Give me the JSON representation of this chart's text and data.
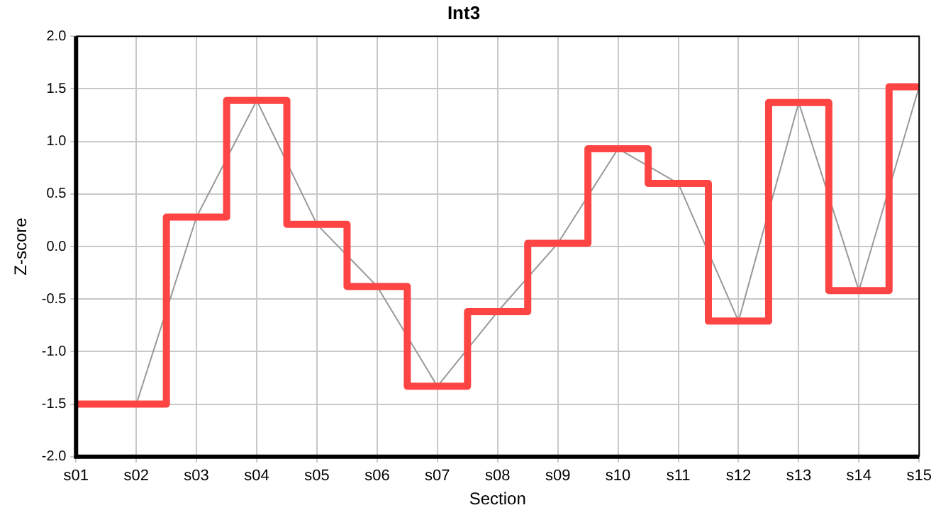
{
  "chart_data": {
    "type": "step",
    "title": "Int3",
    "xlabel": "Section",
    "ylabel": "Z-score",
    "categories": [
      "s01",
      "s02",
      "s03",
      "s04",
      "s05",
      "s06",
      "s07",
      "s08",
      "s09",
      "s10",
      "s11",
      "s12",
      "s13",
      "s14",
      "s15"
    ],
    "series": [
      {
        "type": "step",
        "color": "#ff4444",
        "values": [
          -1.5,
          -1.5,
          0.28,
          1.39,
          0.21,
          -0.38,
          -1.33,
          -0.62,
          0.03,
          0.93,
          0.6,
          -0.71,
          1.37,
          -0.42,
          1.52
        ]
      },
      {
        "type": "line",
        "color": "#999999",
        "values": [
          -1.5,
          -1.5,
          0.28,
          1.39,
          0.21,
          -0.38,
          -1.33,
          -0.62,
          0.03,
          0.93,
          0.6,
          -0.71,
          1.37,
          -0.42,
          1.52
        ]
      }
    ],
    "ylim": [
      -2,
      2
    ],
    "yticks": [
      {
        "value": -2,
        "label": "-2.0"
      },
      {
        "value": -1.5,
        "label": "-1.5"
      },
      {
        "value": -1,
        "label": "-1.0"
      },
      {
        "value": -0.5,
        "label": "-0.5"
      },
      {
        "value": 0,
        "label": "0.0"
      },
      {
        "value": 0.5,
        "label": "0.5"
      },
      {
        "value": 1,
        "label": "1.0"
      },
      {
        "value": 1.5,
        "label": "1.5"
      },
      {
        "value": 2,
        "label": "2.0"
      }
    ],
    "grid": true,
    "legend": false,
    "marker": "none"
  }
}
